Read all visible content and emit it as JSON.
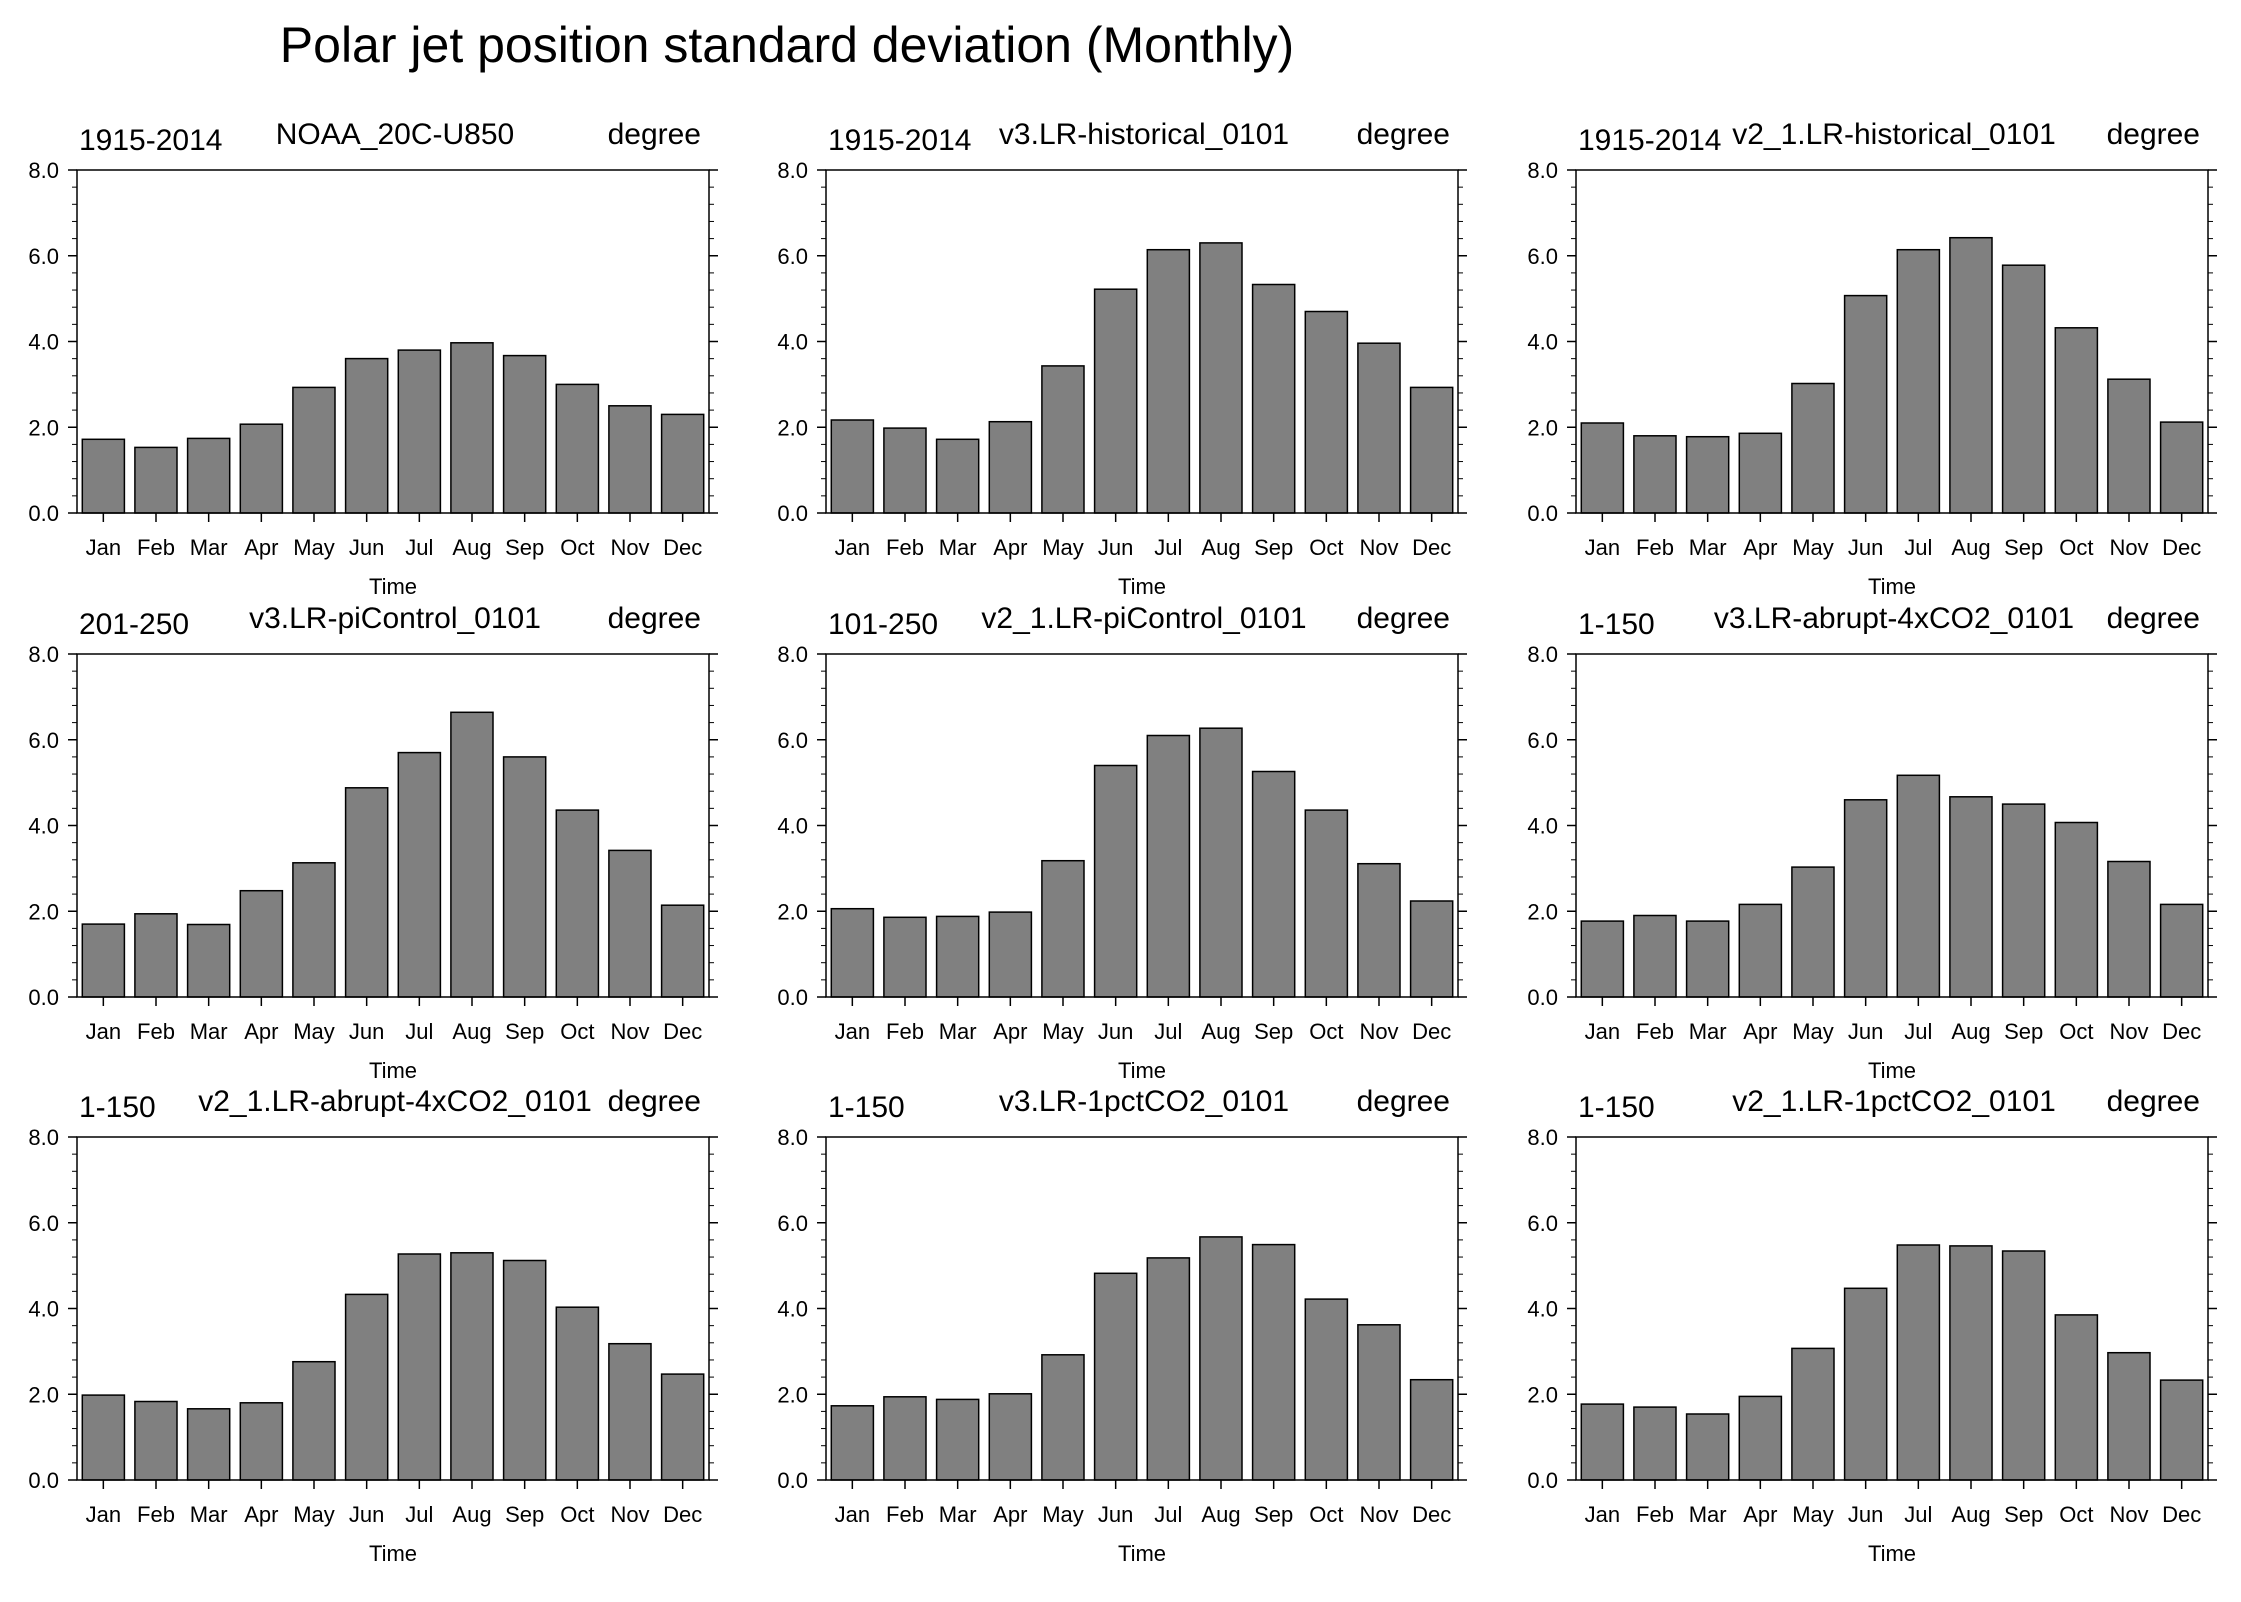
{
  "figure_title": "Polar jet position standard deviation (Monthly)",
  "colors": {
    "bar_fill": "#808080",
    "bar_stroke": "#000000",
    "axis": "#000000"
  },
  "chart_data": [
    {
      "type": "bar",
      "left_label": "1915-2014",
      "center_label": "NOAA_20C-U850",
      "right_label": "degree",
      "categories": [
        "Jan",
        "Feb",
        "Mar",
        "Apr",
        "May",
        "Jun",
        "Jul",
        "Aug",
        "Sep",
        "Oct",
        "Nov",
        "Dec"
      ],
      "values": [
        1.72,
        1.53,
        1.74,
        2.07,
        2.93,
        3.6,
        3.8,
        3.97,
        3.67,
        3.0,
        2.5,
        2.3
      ],
      "xlabel": "Time",
      "ylim": [
        0,
        8
      ],
      "yticks": [
        "0.0",
        "2.0",
        "4.0",
        "6.0",
        "8.0"
      ]
    },
    {
      "type": "bar",
      "left_label": "1915-2014",
      "center_label": "v3.LR-historical_0101",
      "right_label": "degree",
      "categories": [
        "Jan",
        "Feb",
        "Mar",
        "Apr",
        "May",
        "Jun",
        "Jul",
        "Aug",
        "Sep",
        "Oct",
        "Nov",
        "Dec"
      ],
      "values": [
        2.17,
        1.98,
        1.72,
        2.13,
        3.43,
        5.22,
        6.14,
        6.3,
        5.33,
        4.7,
        3.96,
        2.93
      ],
      "xlabel": "Time",
      "ylim": [
        0,
        8
      ],
      "yticks": [
        "0.0",
        "2.0",
        "4.0",
        "6.0",
        "8.0"
      ]
    },
    {
      "type": "bar",
      "left_label": "1915-2014",
      "center_label": "v2_1.LR-historical_0101",
      "right_label": "degree",
      "categories": [
        "Jan",
        "Feb",
        "Mar",
        "Apr",
        "May",
        "Jun",
        "Jul",
        "Aug",
        "Sep",
        "Oct",
        "Nov",
        "Dec"
      ],
      "values": [
        2.1,
        1.8,
        1.78,
        1.86,
        3.02,
        5.07,
        6.14,
        6.42,
        5.78,
        4.32,
        3.12,
        2.12
      ],
      "xlabel": "Time",
      "ylim": [
        0,
        8
      ],
      "yticks": [
        "0.0",
        "2.0",
        "4.0",
        "6.0",
        "8.0"
      ]
    },
    {
      "type": "bar",
      "left_label": "201-250",
      "center_label": "v3.LR-piControl_0101",
      "right_label": "degree",
      "categories": [
        "Jan",
        "Feb",
        "Mar",
        "Apr",
        "May",
        "Jun",
        "Jul",
        "Aug",
        "Sep",
        "Oct",
        "Nov",
        "Dec"
      ],
      "values": [
        1.7,
        1.94,
        1.69,
        2.48,
        3.13,
        4.88,
        5.7,
        6.64,
        5.6,
        4.36,
        3.42,
        2.14
      ],
      "xlabel": "Time",
      "ylim": [
        0,
        8
      ],
      "yticks": [
        "0.0",
        "2.0",
        "4.0",
        "6.0",
        "8.0"
      ]
    },
    {
      "type": "bar",
      "left_label": "101-250",
      "center_label": "v2_1.LR-piControl_0101",
      "right_label": "degree",
      "categories": [
        "Jan",
        "Feb",
        "Mar",
        "Apr",
        "May",
        "Jun",
        "Jul",
        "Aug",
        "Sep",
        "Oct",
        "Nov",
        "Dec"
      ],
      "values": [
        2.06,
        1.86,
        1.88,
        1.98,
        3.18,
        5.4,
        6.1,
        6.27,
        5.26,
        4.36,
        3.11,
        2.24
      ],
      "xlabel": "Time",
      "ylim": [
        0,
        8
      ],
      "yticks": [
        "0.0",
        "2.0",
        "4.0",
        "6.0",
        "8.0"
      ]
    },
    {
      "type": "bar",
      "left_label": "1-150",
      "center_label": "v3.LR-abrupt-4xCO2_0101",
      "right_label": "degree",
      "categories": [
        "Jan",
        "Feb",
        "Mar",
        "Apr",
        "May",
        "Jun",
        "Jul",
        "Aug",
        "Sep",
        "Oct",
        "Nov",
        "Dec"
      ],
      "values": [
        1.77,
        1.9,
        1.77,
        2.16,
        3.03,
        4.6,
        5.17,
        4.67,
        4.5,
        4.07,
        3.16,
        2.16
      ],
      "xlabel": "Time",
      "ylim": [
        0,
        8
      ],
      "yticks": [
        "0.0",
        "2.0",
        "4.0",
        "6.0",
        "8.0"
      ]
    },
    {
      "type": "bar",
      "left_label": "1-150",
      "center_label": "v2_1.LR-abrupt-4xCO2_0101",
      "right_label": "degree",
      "categories": [
        "Jan",
        "Feb",
        "Mar",
        "Apr",
        "May",
        "Jun",
        "Jul",
        "Aug",
        "Sep",
        "Oct",
        "Nov",
        "Dec"
      ],
      "values": [
        1.98,
        1.83,
        1.66,
        1.8,
        2.76,
        4.33,
        5.27,
        5.3,
        5.12,
        4.03,
        3.18,
        2.47
      ],
      "xlabel": "Time",
      "ylim": [
        0,
        8
      ],
      "yticks": [
        "0.0",
        "2.0",
        "4.0",
        "6.0",
        "8.0"
      ]
    },
    {
      "type": "bar",
      "left_label": "1-150",
      "center_label": "v3.LR-1pctCO2_0101",
      "right_label": "degree",
      "categories": [
        "Jan",
        "Feb",
        "Mar",
        "Apr",
        "May",
        "Jun",
        "Jul",
        "Aug",
        "Sep",
        "Oct",
        "Nov",
        "Dec"
      ],
      "values": [
        1.73,
        1.94,
        1.88,
        2.01,
        2.92,
        4.82,
        5.18,
        5.67,
        5.49,
        4.22,
        3.62,
        2.34
      ],
      "xlabel": "Time",
      "ylim": [
        0,
        8
      ],
      "yticks": [
        "0.0",
        "2.0",
        "4.0",
        "6.0",
        "8.0"
      ]
    },
    {
      "type": "bar",
      "left_label": "1-150",
      "center_label": "v2_1.LR-1pctCO2_0101",
      "right_label": "degree",
      "categories": [
        "Jan",
        "Feb",
        "Mar",
        "Apr",
        "May",
        "Jun",
        "Jul",
        "Aug",
        "Sep",
        "Oct",
        "Nov",
        "Dec"
      ],
      "values": [
        1.77,
        1.7,
        1.54,
        1.95,
        3.07,
        4.47,
        5.48,
        5.46,
        5.34,
        3.85,
        2.97,
        2.33
      ],
      "xlabel": "Time",
      "ylim": [
        0,
        8
      ],
      "yticks": [
        "0.0",
        "2.0",
        "4.0",
        "6.0",
        "8.0"
      ]
    }
  ]
}
